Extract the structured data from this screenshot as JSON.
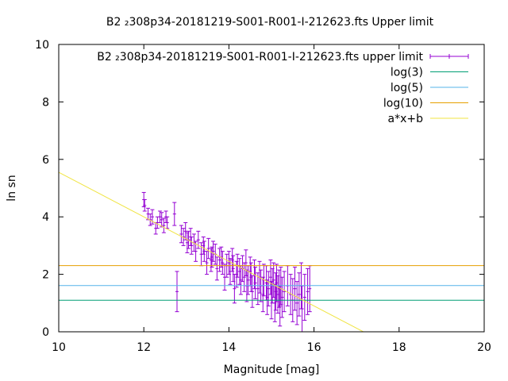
{
  "chart_data": {
    "type": "scatter",
    "title": "B2 ₂308p34-20181219-S001-R001-I-212623.fts Upper limit",
    "xlabel": "Magnitude [mag]",
    "ylabel": "ln sn",
    "xlim": [
      10,
      20
    ],
    "ylim": [
      0,
      10
    ],
    "xticks": [
      "10",
      "12",
      "14",
      "16",
      "18",
      "20"
    ],
    "yticks": [
      "0",
      "2",
      "4",
      "6",
      "8",
      "10"
    ],
    "grid": false,
    "legend_position": "top-right",
    "series": [
      {
        "name": "B2 ₂308p34-20181219-S001-R001-I-212623.fts upper limit",
        "style": "errorbars",
        "color": "#9400d3",
        "x": [
          12.0,
          12.02,
          12.1,
          12.15,
          12.2,
          12.28,
          12.32,
          12.38,
          12.42,
          12.47,
          12.52,
          12.55,
          12.72,
          12.78,
          12.88,
          12.93,
          12.98,
          13.02,
          13.05,
          13.1,
          13.12,
          13.18,
          13.22,
          13.28,
          13.35,
          13.4,
          13.42,
          13.48,
          13.52,
          13.58,
          13.6,
          13.63,
          13.68,
          13.72,
          13.78,
          13.82,
          13.85,
          13.9,
          13.95,
          14.0,
          14.03,
          14.08,
          14.1,
          14.13,
          14.18,
          14.2,
          14.25,
          14.28,
          14.32,
          14.36,
          14.4,
          14.42,
          14.45,
          14.5,
          14.52,
          14.55,
          14.6,
          14.62,
          14.68,
          14.72,
          14.75,
          14.8,
          14.82,
          14.88,
          14.9,
          14.93,
          14.98,
          15.0,
          15.02,
          15.05,
          15.08,
          15.1,
          15.12,
          15.15,
          15.18,
          15.2,
          15.22,
          15.25,
          15.3,
          15.38,
          15.45,
          15.5,
          15.55,
          15.6,
          15.65,
          15.7,
          15.72,
          15.78,
          15.85,
          15.9
        ],
        "y": [
          4.6,
          4.4,
          4.1,
          3.9,
          4.0,
          3.6,
          3.8,
          4.0,
          3.9,
          3.7,
          4.0,
          3.8,
          4.1,
          1.4,
          3.4,
          3.3,
          3.5,
          3.1,
          3.2,
          3.3,
          3.0,
          3.1,
          2.8,
          3.2,
          2.7,
          3.0,
          2.8,
          2.4,
          2.9,
          2.5,
          2.6,
          2.8,
          2.7,
          2.2,
          2.5,
          2.6,
          2.4,
          1.9,
          2.3,
          2.4,
          2.1,
          2.5,
          2.2,
          1.5,
          2.0,
          2.3,
          2.1,
          1.8,
          2.2,
          1.9,
          2.4,
          1.6,
          1.8,
          2.1,
          1.9,
          1.4,
          2.0,
          1.7,
          1.5,
          1.9,
          1.6,
          1.3,
          1.8,
          1.7,
          1.2,
          1.5,
          1.9,
          1.1,
          1.6,
          1.8,
          1.0,
          1.4,
          1.7,
          1.3,
          1.5,
          0.9,
          1.6,
          1.2,
          1.4,
          1.6,
          1.3,
          1.1,
          1.5,
          1.0,
          1.3,
          1.6,
          0.8,
          1.2,
          1.4,
          1.5
        ],
        "yerr": [
          0.25,
          0.2,
          0.2,
          0.2,
          0.25,
          0.2,
          0.2,
          0.2,
          0.25,
          0.25,
          0.2,
          0.2,
          0.4,
          0.7,
          0.3,
          0.3,
          0.3,
          0.35,
          0.3,
          0.3,
          0.3,
          0.3,
          0.35,
          0.3,
          0.4,
          0.3,
          0.35,
          0.4,
          0.35,
          0.4,
          0.35,
          0.35,
          0.35,
          0.4,
          0.4,
          0.35,
          0.4,
          0.45,
          0.4,
          0.4,
          0.45,
          0.4,
          0.45,
          0.5,
          0.45,
          0.4,
          0.45,
          0.5,
          0.45,
          0.5,
          0.45,
          0.55,
          0.5,
          0.5,
          0.5,
          0.55,
          0.5,
          0.55,
          0.55,
          0.55,
          0.55,
          0.6,
          0.55,
          0.6,
          0.6,
          0.6,
          0.6,
          0.65,
          0.6,
          0.6,
          0.65,
          0.65,
          0.65,
          0.65,
          0.65,
          0.7,
          0.65,
          0.7,
          0.7,
          0.7,
          0.7,
          0.75,
          0.75,
          0.75,
          0.75,
          0.8,
          0.8,
          0.8,
          0.8,
          0.8
        ]
      },
      {
        "name": "log(3)",
        "style": "hline",
        "color": "#009e73",
        "y": 1.0986
      },
      {
        "name": "log(5)",
        "style": "hline",
        "color": "#56b4e9",
        "y": 1.6094
      },
      {
        "name": "log(10)",
        "style": "hline",
        "color": "#e69f00",
        "y": 2.3026
      },
      {
        "name": "a*x+b",
        "style": "line",
        "color": "#f0e442",
        "slope": -0.775,
        "intercept": 13.3
      }
    ]
  }
}
